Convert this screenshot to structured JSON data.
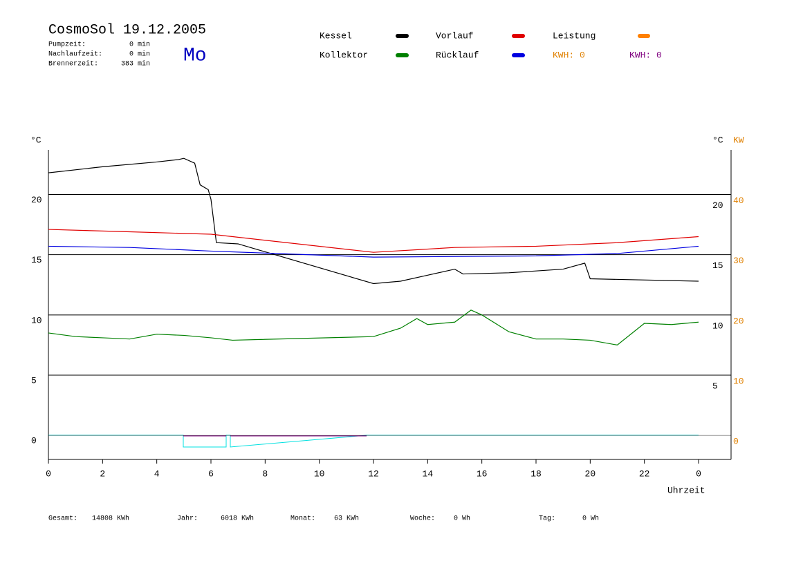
{
  "chart_data": {
    "type": "line",
    "title": "CosmoSol 19.12.2005",
    "weekday": "Mo",
    "info": [
      {
        "label": "Pumpzeit:",
        "value": "0 min"
      },
      {
        "label": "Nachlaufzeit:",
        "value": "0 min"
      },
      {
        "label": "Brennerzeit:",
        "value": "383 min"
      }
    ],
    "ylabel": "°C",
    "y2labels": [
      "°C",
      "KW"
    ],
    "xlabel": "Uhrzeit",
    "xlim": [
      0,
      24
    ],
    "xticks": [
      0,
      2,
      4,
      6,
      8,
      10,
      12,
      14,
      16,
      18,
      20,
      22,
      {
        "value": 24,
        "label": "0"
      }
    ],
    "ylim": [
      -2,
      23.7
    ],
    "yticks": [
      0,
      5,
      10,
      15,
      20
    ],
    "y2lim": [
      -4,
      47.4
    ],
    "y2ticks": [
      0,
      10,
      20,
      30,
      40
    ],
    "grid": true,
    "series": [
      {
        "name": "Kessel",
        "color": "#000000",
        "x": [
          0,
          2,
          4,
          4.8,
          5,
          5.4,
          5.6,
          5.9,
          6.0,
          6.2,
          7,
          12,
          13,
          14,
          15,
          15.3,
          17,
          19,
          19.8,
          20,
          24
        ],
        "values": [
          21.8,
          22.3,
          22.7,
          22.9,
          23.0,
          22.6,
          20.8,
          20.4,
          19.6,
          16.0,
          15.9,
          12.6,
          12.8,
          13.3,
          13.8,
          13.4,
          13.5,
          13.8,
          14.3,
          13.0,
          12.8
        ]
      },
      {
        "name": "Kollektor",
        "color": "#008000",
        "x": [
          0,
          1,
          2,
          3,
          4,
          5,
          6,
          6.8,
          12,
          13,
          13.6,
          14,
          15,
          15.6,
          16,
          17,
          18,
          19,
          20,
          21,
          22,
          23,
          24
        ],
        "values": [
          8.5,
          8.2,
          8.1,
          8.0,
          8.4,
          8.3,
          8.1,
          7.9,
          8.2,
          8.9,
          9.7,
          9.2,
          9.4,
          10.4,
          10.0,
          8.6,
          8.0,
          8.0,
          7.9,
          7.5,
          9.3,
          9.2,
          9.4
        ]
      },
      {
        "name": "Vorlauf",
        "color": "#e00000",
        "x": [
          0,
          3,
          6,
          12,
          15,
          18,
          21,
          24
        ],
        "values": [
          17.1,
          16.9,
          16.7,
          15.2,
          15.6,
          15.7,
          16.0,
          16.5
        ]
      },
      {
        "name": "Rücklauf",
        "color": "#0000e0",
        "x": [
          0,
          3,
          6,
          12,
          18,
          21,
          24
        ],
        "values": [
          15.7,
          15.6,
          15.3,
          14.8,
          14.9,
          15.1,
          15.7
        ]
      }
    ],
    "extra_legend": [
      {
        "name": "Leistung",
        "color": "#ff8000"
      }
    ],
    "kwh": [
      {
        "label": "KWH: 0",
        "color": "#e08000"
      },
      {
        "label": "KWH: 0",
        "color": "#800080"
      }
    ],
    "footer": [
      {
        "label": "Gesamt:",
        "value": "14808 KWh"
      },
      {
        "label": "Jahr:",
        "value": "6018 KWh"
      },
      {
        "label": "Monat:",
        "value": "63 KWh"
      },
      {
        "label": "Woche:",
        "value": "0 Wh"
      },
      {
        "label": "Tag:",
        "value": "0 Wh"
      }
    ]
  }
}
